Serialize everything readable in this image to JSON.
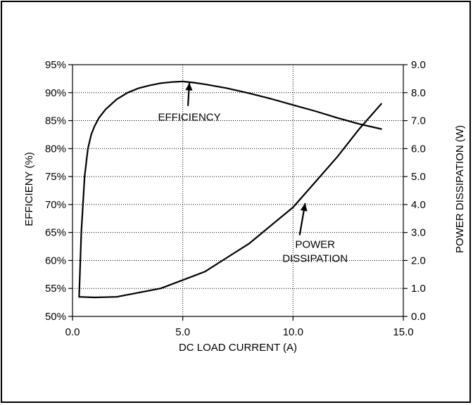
{
  "chart_data": {
    "type": "line",
    "title": "",
    "xlabel": "DC LOAD CURRENT (A)",
    "ylabel_left": "EFFICIENY (%)",
    "ylabel_right": "POWER DISSIPATION (W)",
    "xlim": [
      0,
      15
    ],
    "ylim_left": [
      50,
      95
    ],
    "ylim_right": [
      0,
      9
    ],
    "grid": true,
    "x_ticks": [
      "0.0",
      "5.0",
      "10.0",
      "15.0"
    ],
    "x_tick_values": [
      0,
      5,
      10,
      15
    ],
    "y_left_ticks": [
      "50%",
      "55%",
      "60%",
      "65%",
      "70%",
      "75%",
      "80%",
      "85%",
      "90%",
      "95%"
    ],
    "y_left_tick_values": [
      50,
      55,
      60,
      65,
      70,
      75,
      80,
      85,
      90,
      95
    ],
    "y_right_ticks": [
      "0.0",
      "1.0",
      "2.0",
      "3.0",
      "4.0",
      "5.0",
      "6.0",
      "7.0",
      "8.0",
      "9.0"
    ],
    "y_right_tick_values": [
      0,
      1,
      2,
      3,
      4,
      5,
      6,
      7,
      8,
      9
    ],
    "series": [
      {
        "axis": "left",
        "x": [
          0.3,
          0.4,
          0.55,
          0.7,
          0.85,
          1.0,
          1.2,
          1.5,
          2.0,
          2.5,
          3.0,
          3.5,
          4.0,
          4.5,
          5.0,
          5.5,
          6.0,
          7.0,
          8.0,
          9.0,
          10.0,
          11.0,
          12.0,
          13.0,
          14.0
        ],
        "y": [
          53.5,
          65.0,
          75.0,
          80.0,
          82.5,
          84.0,
          85.5,
          87.0,
          88.8,
          90.0,
          90.8,
          91.3,
          91.7,
          91.9,
          92.0,
          91.8,
          91.5,
          90.8,
          89.9,
          88.9,
          87.8,
          86.7,
          85.5,
          84.4,
          83.5
        ]
      },
      {
        "axis": "right",
        "x": [
          0.3,
          1.0,
          2.0,
          3.0,
          4.0,
          5.0,
          6.0,
          7.0,
          8.0,
          9.0,
          10.0,
          11.0,
          12.0,
          13.0,
          14.0
        ],
        "y": [
          0.7,
          0.68,
          0.7,
          0.85,
          1.0,
          1.3,
          1.6,
          2.1,
          2.6,
          3.25,
          3.9,
          4.8,
          5.7,
          6.7,
          7.6
        ]
      }
    ],
    "annotations": [
      {
        "lines": [
          "EFFICIENCY"
        ],
        "x": 5.3,
        "y": 85.0,
        "axis": "left",
        "arrow_to": [
          5.3,
          91.8
        ]
      },
      {
        "lines": [
          "POWER",
          "DISSIPATION"
        ],
        "x": 11.0,
        "y": 2.45,
        "axis": "right",
        "arrow_to": [
          10.55,
          4.05
        ]
      }
    ]
  }
}
